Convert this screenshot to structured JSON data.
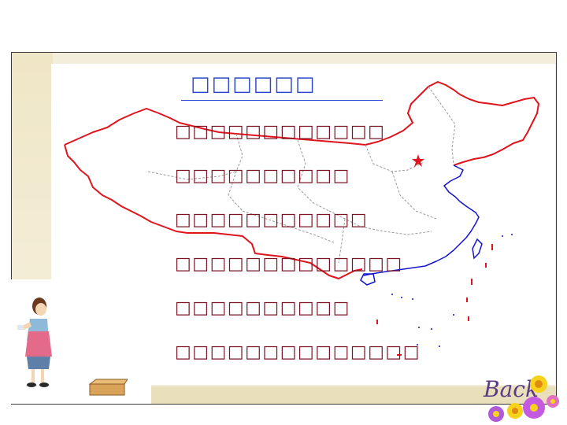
{
  "slide": {
    "heading": "□□□□□□",
    "lines": [
      "□□□□□□□□□□□□",
      "□□□□□□□□□□",
      "□□□□□□□□□□□",
      "□□□□□□□□□□□□□",
      "□□□□□□□□□□",
      "□□□□□□□□□□□□□□"
    ]
  },
  "map": {
    "subject": "china-outline-map",
    "border_color": "#e0141e",
    "coast_color": "#1414d0",
    "province_line_color": "#9a9a9a",
    "capital_marker_color": "#e0141e"
  },
  "navigation": {
    "back_label": "Back",
    "back_color": "#5b3a86"
  },
  "colors": {
    "heading": "#2a48c8",
    "body_text": "#7a1424",
    "frame_tint": "#f3eedc"
  }
}
